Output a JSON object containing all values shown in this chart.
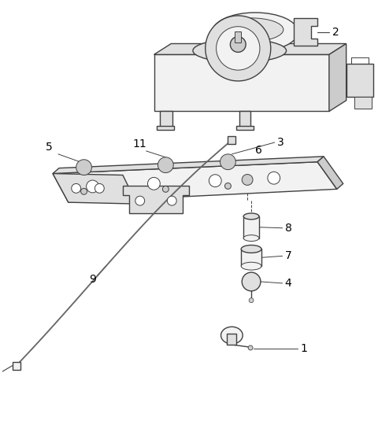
{
  "bg_color": "#ffffff",
  "line_color": "#404040",
  "fill_light": "#f2f2f2",
  "fill_mid": "#e0e0e0",
  "fill_dark": "#cccccc",
  "figsize": [
    4.8,
    5.35
  ],
  "dpi": 100,
  "label_fs": 10
}
